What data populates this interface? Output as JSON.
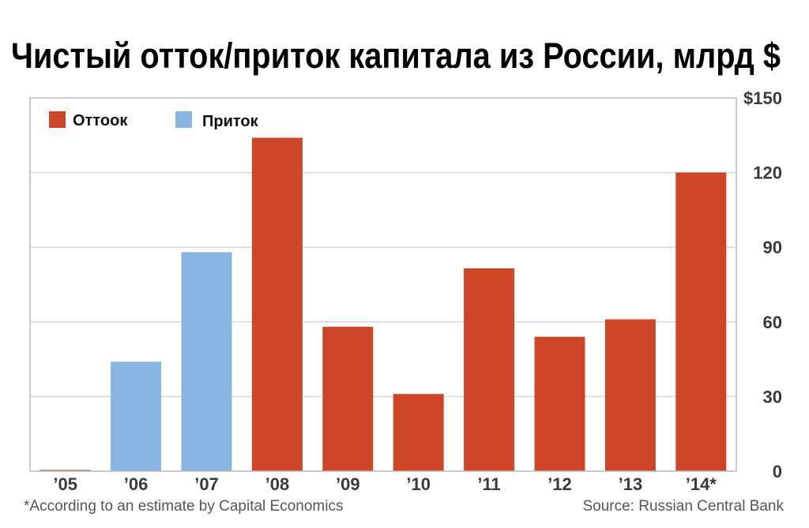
{
  "colors": {
    "outflow": "#cf4527",
    "inflow": "#89b6e0",
    "grid": "#d7d7d7",
    "frame": "#b9b9b9",
    "tick_text": "#3a3a3a"
  },
  "footnote": "*According to an estimate by Capital Economics",
  "source": "Source: Russian Central Bank",
  "chart_data": {
    "type": "bar",
    "title": "Чистый отток/приток капитала из России, млрд $",
    "xlabel": "",
    "ylabel": "",
    "categories": [
      "’05",
      "’06",
      "’07",
      "’08",
      "’09",
      "’10",
      "’11",
      "’12",
      "’13",
      "’14*"
    ],
    "values": [
      0.5,
      44,
      88,
      134,
      58,
      31,
      81.5,
      54,
      61,
      120
    ],
    "flow": [
      "outflow",
      "inflow",
      "inflow",
      "outflow",
      "outflow",
      "outflow",
      "outflow",
      "outflow",
      "outflow",
      "outflow"
    ],
    "legend": [
      {
        "key": "outflow",
        "label": "Оттоок"
      },
      {
        "key": "inflow",
        "label": "Приток"
      }
    ],
    "legend_position": "top-left",
    "ylim": [
      0,
      150
    ],
    "yticks": [
      0,
      30,
      60,
      90,
      120,
      150
    ],
    "ytick_labels": [
      "0",
      "30",
      "60",
      "90",
      "120",
      "$150"
    ],
    "yaxis_side": "right",
    "grid": true
  }
}
